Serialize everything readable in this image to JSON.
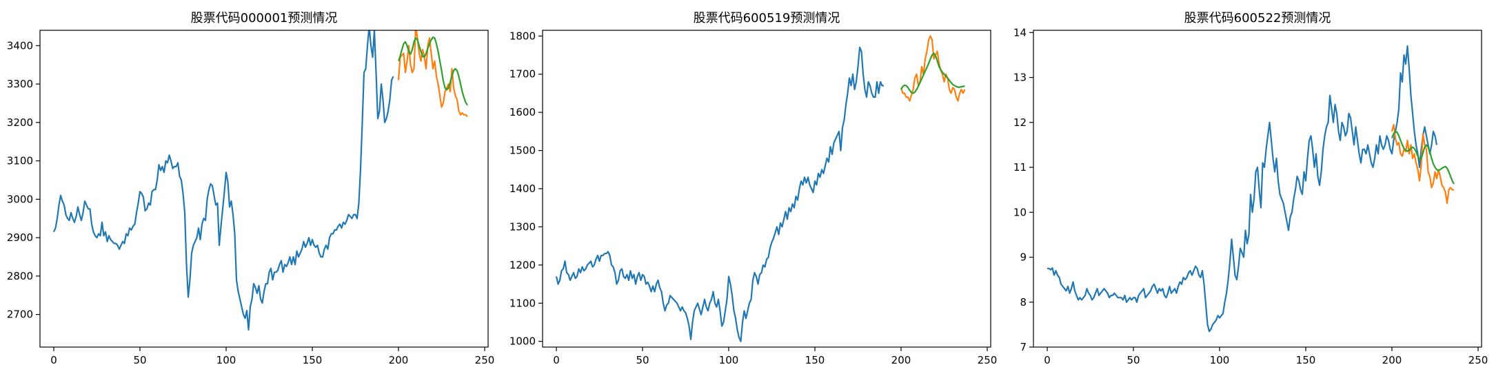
{
  "figure": {
    "background": "#ffffff",
    "series_colors": {
      "actual": "#1f77b4",
      "test_actual": "#ff7f0e",
      "prediction": "#2ca02c"
    }
  },
  "chart_data": [
    {
      "type": "line",
      "title": "股票代码000001预测情况",
      "xlabel": "",
      "ylabel": "",
      "xlim": [
        -8,
        252
      ],
      "ylim": [
        2615,
        3440
      ],
      "xticks": [
        0,
        50,
        100,
        150,
        200,
        250
      ],
      "yticks": [
        2700,
        2800,
        2900,
        3000,
        3100,
        3200,
        3300,
        3400
      ],
      "grid": false,
      "legend": "none",
      "series": [
        {
          "color": "#1f77b4",
          "x_start": 0,
          "values": [
            2915,
            2925,
            2950,
            2985,
            3010,
            2995,
            2985,
            2960,
            2950,
            2945,
            2965,
            2950,
            2940,
            2955,
            2980,
            2960,
            2945,
            2965,
            2995,
            2985,
            2975,
            2975,
            2935,
            2915,
            2905,
            2900,
            2910,
            2905,
            2940,
            2905,
            2915,
            2890,
            2905,
            2895,
            2890,
            2885,
            2885,
            2880,
            2870,
            2880,
            2890,
            2885,
            2910,
            2905,
            2925,
            2920,
            2930,
            2935,
            2965,
            2990,
            3020,
            3015,
            3005,
            2970,
            2975,
            2990,
            2985,
            3020,
            3025,
            3025,
            3050,
            3090,
            3075,
            3085,
            3070,
            3100,
            3095,
            3115,
            3100,
            3080,
            3085,
            3085,
            3095,
            3060,
            3050,
            3015,
            2965,
            2830,
            2745,
            2790,
            2860,
            2880,
            2890,
            2900,
            2925,
            2895,
            2935,
            2950,
            2945,
            3000,
            3025,
            3040,
            3035,
            3010,
            2985,
            2990,
            2880,
            2930,
            2975,
            3020,
            3070,
            3045,
            2980,
            2995,
            2960,
            2910,
            2790,
            2760,
            2740,
            2720,
            2700,
            2690,
            2710,
            2660,
            2720,
            2740,
            2780,
            2770,
            2755,
            2775,
            2740,
            2730,
            2760,
            2780,
            2780,
            2810,
            2820,
            2790,
            2810,
            2810,
            2815,
            2830,
            2840,
            2810,
            2830,
            2825,
            2835,
            2850,
            2830,
            2850,
            2830,
            2865,
            2850,
            2860,
            2870,
            2890,
            2875,
            2885,
            2900,
            2880,
            2895,
            2880,
            2875,
            2880,
            2860,
            2850,
            2850,
            2870,
            2880,
            2870,
            2900,
            2910,
            2910,
            2920,
            2920,
            2930,
            2935,
            2925,
            2940,
            2935,
            2945,
            2960,
            2955,
            2950,
            2960,
            2960,
            2950,
            2990,
            3080,
            3200,
            3330,
            3340,
            3400,
            3450,
            3400,
            3370,
            3440,
            3330,
            3210,
            3230,
            3300,
            3260,
            3200,
            3210,
            3230,
            3260,
            3310,
            3320
          ]
        },
        {
          "color": "#ff7f0e",
          "x_start": 200,
          "values": [
            3310,
            3370,
            3375,
            3380,
            3330,
            3360,
            3400,
            3350,
            3330,
            3340,
            3450,
            3420,
            3380,
            3360,
            3390,
            3370,
            3340,
            3400,
            3420,
            3380,
            3340,
            3360,
            3320,
            3300,
            3270,
            3240,
            3250,
            3280,
            3290,
            3300,
            3280,
            3340,
            3290,
            3270,
            3260,
            3230,
            3220,
            3225,
            3220,
            3220,
            3215
          ]
        },
        {
          "color": "#2ca02c",
          "x_start": 200,
          "values": [
            3360,
            3373,
            3390,
            3405,
            3410,
            3400,
            3385,
            3378,
            3390,
            3410,
            3420,
            3415,
            3400,
            3385,
            3372,
            3370,
            3380,
            3393,
            3405,
            3415,
            3422,
            3420,
            3405,
            3385,
            3360,
            3335,
            3308,
            3290,
            3285,
            3290,
            3305,
            3320,
            3335,
            3340,
            3335,
            3320,
            3300,
            3280,
            3265,
            3252,
            3245
          ]
        }
      ]
    },
    {
      "type": "line",
      "title": "股票代码600519预测情况",
      "xlabel": "",
      "ylabel": "",
      "xlim": [
        -8,
        252
      ],
      "ylim": [
        985,
        1815
      ],
      "xticks": [
        0,
        50,
        100,
        150,
        200,
        250
      ],
      "yticks": [
        1000,
        1100,
        1200,
        1300,
        1400,
        1500,
        1600,
        1700,
        1800
      ],
      "grid": false,
      "legend": "none",
      "series": [
        {
          "color": "#1f77b4",
          "x_start": 0,
          "values": [
            1170,
            1150,
            1160,
            1185,
            1190,
            1210,
            1180,
            1175,
            1160,
            1170,
            1180,
            1165,
            1170,
            1190,
            1180,
            1195,
            1185,
            1190,
            1200,
            1205,
            1210,
            1195,
            1200,
            1215,
            1225,
            1210,
            1225,
            1225,
            1230,
            1230,
            1235,
            1225,
            1200,
            1195,
            1180,
            1150,
            1160,
            1185,
            1190,
            1170,
            1165,
            1175,
            1160,
            1185,
            1165,
            1175,
            1150,
            1170,
            1180,
            1160,
            1175,
            1170,
            1150,
            1155,
            1145,
            1130,
            1145,
            1130,
            1150,
            1160,
            1140,
            1130,
            1100,
            1080,
            1095,
            1100,
            1120,
            1115,
            1110,
            1105,
            1100,
            1090,
            1080,
            1090,
            1080,
            1075,
            1060,
            1040,
            1005,
            1050,
            1080,
            1090,
            1100,
            1085,
            1070,
            1090,
            1110,
            1090,
            1080,
            1100,
            1110,
            1130,
            1100,
            1090,
            1110,
            1080,
            1040,
            1050,
            1080,
            1110,
            1170,
            1150,
            1120,
            1080,
            1060,
            1030,
            1010,
            1000,
            1050,
            1080,
            1060,
            1080,
            1100,
            1110,
            1160,
            1180,
            1170,
            1150,
            1175,
            1180,
            1200,
            1195,
            1215,
            1220,
            1245,
            1260,
            1270,
            1285,
            1300,
            1280,
            1310,
            1300,
            1320,
            1340,
            1320,
            1350,
            1340,
            1360,
            1350,
            1380,
            1370,
            1400,
            1420,
            1410,
            1430,
            1415,
            1430,
            1410,
            1400,
            1390,
            1420,
            1410,
            1440,
            1430,
            1450,
            1440,
            1460,
            1480,
            1470,
            1510,
            1490,
            1520,
            1530,
            1540,
            1550,
            1500,
            1560,
            1580,
            1620,
            1650,
            1690,
            1670,
            1700,
            1660,
            1680,
            1720,
            1770,
            1760,
            1700,
            1660,
            1640,
            1680,
            1670,
            1650,
            1640,
            1640,
            1680,
            1650,
            1680,
            1670,
            1670
          ]
        },
        {
          "color": "#ff7f0e",
          "x_start": 200,
          "values": [
            1665,
            1650,
            1650,
            1640,
            1640,
            1630,
            1645,
            1660,
            1690,
            1700,
            1670,
            1680,
            1720,
            1700,
            1740,
            1760,
            1790,
            1800,
            1790,
            1740,
            1750,
            1760,
            1730,
            1710,
            1700,
            1680,
            1700,
            1690,
            1660,
            1650,
            1665,
            1660,
            1640,
            1630,
            1650,
            1660,
            1650,
            1660
          ]
        },
        {
          "color": "#2ca02c",
          "x_start": 200,
          "values": [
            1660,
            1668,
            1671,
            1670,
            1665,
            1658,
            1652,
            1650,
            1653,
            1660,
            1668,
            1678,
            1688,
            1698,
            1708,
            1718,
            1728,
            1740,
            1750,
            1755,
            1748,
            1735,
            1720,
            1712,
            1705,
            1700,
            1695,
            1690,
            1684,
            1678,
            1673,
            1670,
            1668,
            1666,
            1666,
            1667,
            1668,
            1669
          ]
        }
      ]
    },
    {
      "type": "line",
      "title": "股票代码600522预测情况",
      "xlabel": "",
      "ylabel": "",
      "xlim": [
        -8,
        252
      ],
      "ylim": [
        7,
        14.05
      ],
      "xticks": [
        0,
        50,
        100,
        150,
        200,
        250
      ],
      "yticks": [
        7,
        8,
        9,
        10,
        11,
        12,
        13,
        14
      ],
      "grid": false,
      "legend": "none",
      "series": [
        {
          "color": "#1f77b4",
          "x_start": 0,
          "values": [
            8.75,
            8.75,
            8.72,
            8.76,
            8.6,
            8.7,
            8.6,
            8.55,
            8.4,
            8.35,
            8.3,
            8.25,
            8.35,
            8.2,
            8.3,
            8.45,
            8.25,
            8.15,
            8.05,
            8.1,
            8.05,
            8.1,
            8.15,
            8.3,
            8.2,
            8.15,
            8.05,
            8.1,
            8.2,
            8.3,
            8.15,
            8.2,
            8.25,
            8.3,
            8.25,
            8.2,
            8.1,
            8.15,
            8.15,
            8.2,
            8.15,
            8.1,
            8.1,
            8.1,
            8.05,
            8.15,
            8.0,
            8.05,
            8.1,
            8.05,
            8.1,
            8.1,
            8.0,
            8.15,
            8.2,
            8.25,
            8.3,
            8.1,
            8.15,
            8.2,
            8.25,
            8.35,
            8.4,
            8.3,
            8.2,
            8.3,
            8.25,
            8.3,
            8.15,
            8.1,
            8.2,
            8.35,
            8.2,
            8.25,
            8.3,
            8.2,
            8.35,
            8.45,
            8.4,
            8.55,
            8.5,
            8.55,
            8.65,
            8.7,
            8.6,
            8.7,
            8.8,
            8.75,
            8.6,
            8.55,
            8.7,
            8.4,
            7.95,
            7.5,
            7.35,
            7.4,
            7.5,
            7.55,
            7.6,
            7.7,
            7.65,
            7.7,
            7.75,
            8.0,
            8.2,
            8.5,
            8.9,
            9.4,
            9.0,
            8.6,
            8.5,
            8.8,
            9.2,
            9.1,
            9.0,
            9.6,
            9.3,
            9.5,
            10.4,
            10.0,
            10.3,
            10.9,
            11.0,
            10.5,
            10.1,
            11.1,
            11.0,
            11.4,
            11.7,
            12.0,
            11.6,
            11.2,
            10.9,
            11.2,
            10.7,
            10.4,
            10.3,
            10.2,
            10.0,
            9.8,
            9.6,
            9.9,
            10.0,
            10.3,
            10.5,
            10.8,
            10.7,
            10.5,
            10.4,
            10.9,
            10.7,
            11.2,
            11.6,
            11.7,
            11.4,
            11.0,
            11.3,
            10.8,
            10.6,
            10.9,
            11.4,
            11.7,
            11.9,
            12.0,
            12.6,
            12.3,
            12.0,
            12.4,
            12.2,
            11.8,
            11.6,
            12.0,
            11.9,
            11.7,
            11.8,
            12.2,
            12.1,
            11.8,
            11.5,
            11.9,
            11.6,
            11.3,
            11.1,
            11.4,
            11.4,
            11.3,
            11.5,
            11.3,
            11.1,
            11.0,
            11.2,
            11.5,
            11.3,
            11.7,
            11.5,
            11.4,
            11.5,
            11.7,
            11.6,
            11.4,
            11.3,
            11.6,
            11.8,
            12.0,
            12.3,
            13.1,
            12.9,
            13.5,
            13.3,
            13.7,
            13.2,
            12.6,
            12.2,
            11.8,
            11.5,
            11.3,
            11.0,
            11.4,
            11.7,
            11.9,
            11.7,
            11.5,
            11.3,
            11.5,
            11.8,
            11.7,
            11.5
          ]
        },
        {
          "color": "#ff7f0e",
          "x_start": 200,
          "values": [
            11.8,
            11.95,
            11.65,
            11.5,
            11.55,
            11.3,
            11.25,
            11.4,
            11.35,
            11.6,
            11.3,
            11.5,
            11.2,
            11.3,
            11.1,
            10.95,
            10.7,
            11.05,
            11.75,
            11.5,
            11.4,
            10.9,
            10.8,
            10.55,
            10.65,
            10.9,
            10.75,
            10.95,
            10.8,
            10.6,
            10.55,
            10.45,
            10.2,
            10.5,
            10.55,
            10.5,
            10.5
          ]
        },
        {
          "color": "#2ca02c",
          "x_start": 200,
          "values": [
            11.65,
            11.75,
            11.8,
            11.78,
            11.7,
            11.6,
            11.5,
            11.42,
            11.38,
            11.36,
            11.38,
            11.42,
            11.45,
            11.42,
            11.35,
            11.25,
            11.18,
            11.2,
            11.32,
            11.45,
            11.5,
            11.45,
            11.35,
            11.2,
            11.08,
            11.0,
            10.95,
            10.93,
            10.95,
            10.98,
            11.0,
            11.02,
            10.98,
            10.9,
            10.8,
            10.7,
            10.63
          ]
        }
      ]
    }
  ]
}
